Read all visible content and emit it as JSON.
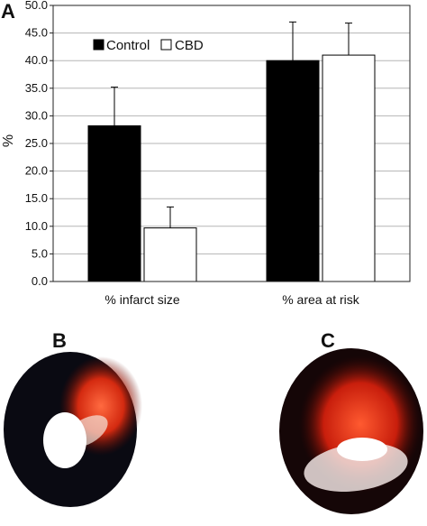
{
  "panels": {
    "a": "A",
    "b": "B",
    "c": "C"
  },
  "chart_data": {
    "type": "bar",
    "title": "",
    "xlabel": "",
    "ylabel": "%",
    "ylim": [
      0,
      50
    ],
    "yticks": [
      "0.0",
      "5.0",
      "10.0",
      "15.0",
      "20.0",
      "25.0",
      "30.0",
      "35.0",
      "40.0",
      "45.0",
      "50.0"
    ],
    "categories": [
      "% infarct size",
      "% area at risk"
    ],
    "series": [
      {
        "name": "Control",
        "values": [
          28.2,
          40.0
        ],
        "errors": [
          7.0,
          7.0
        ],
        "color": "#000000"
      },
      {
        "name": "CBD",
        "values": [
          9.7,
          41.0
        ],
        "errors": [
          3.8,
          5.8
        ],
        "color": "#ffffff"
      }
    ],
    "grid": true,
    "legend_position": "top-left"
  },
  "images": {
    "b": "heart-slice-control",
    "c": "heart-slice-cbd"
  }
}
